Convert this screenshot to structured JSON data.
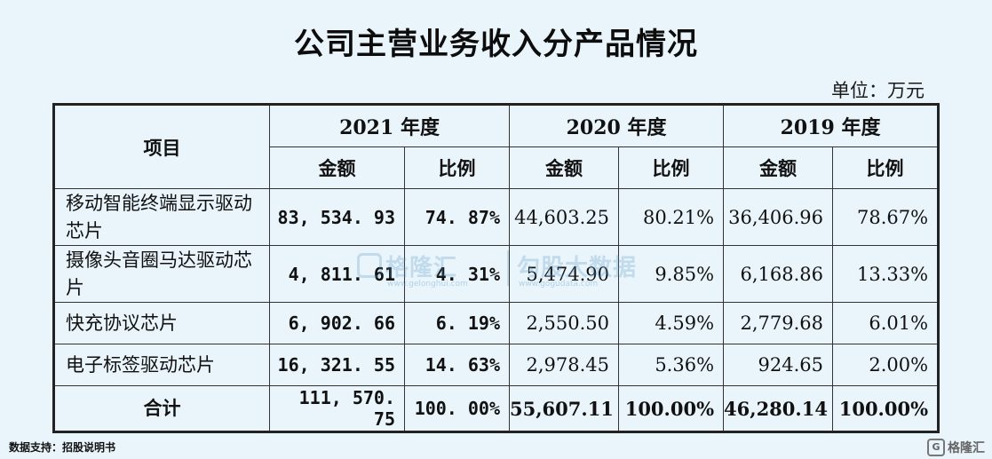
{
  "title": "公司主营业务收入分产品情况",
  "unit": "单位：万元",
  "table": {
    "item_header": "项目",
    "years": [
      "2021 年度",
      "2020 年度",
      "2019 年度"
    ],
    "amount_label": "金额",
    "ratio_label": "比例",
    "rows": [
      {
        "name": "移动智能终端显示驱动芯片",
        "v2021": "83, 534. 93",
        "p2021": "74. 87%",
        "v2020": "44,603.25",
        "p2020": "80.21%",
        "v2019": "36,406.96",
        "p2019": "78.67%"
      },
      {
        "name": "摄像头音圈马达驱动芯片",
        "v2021": "4, 811. 61",
        "p2021": "4. 31%",
        "v2020": "5,474.90",
        "p2020": "9.85%",
        "v2019": "6,168.86",
        "p2019": "13.33%"
      },
      {
        "name": "快充协议芯片",
        "v2021": "6, 902. 66",
        "p2021": "6. 19%",
        "v2020": "2,550.50",
        "p2020": "4.59%",
        "v2019": "2,779.68",
        "p2019": "6.01%"
      },
      {
        "name": "电子标签驱动芯片",
        "v2021": "16, 321. 55",
        "p2021": "14. 63%",
        "v2020": "2,978.45",
        "p2020": "5.36%",
        "v2019": "924.65",
        "p2019": "2.00%"
      }
    ],
    "total": {
      "name": "合计",
      "v2021": "111, 570. 75",
      "p2021": "100. 00%",
      "v2020": "55,607.11",
      "p2020": "100.00%",
      "v2019": "46,280.14",
      "p2019": "100.00%"
    }
  },
  "source": "数据支持：招股说明书",
  "watermarks": {
    "gelonghui": "格隆汇",
    "gelonghui_url": "www.gelonghui.com",
    "gogudata": "勾股大数据",
    "gogudata_url": "www.gogudata.com"
  },
  "corner_logo": "格隆汇"
}
